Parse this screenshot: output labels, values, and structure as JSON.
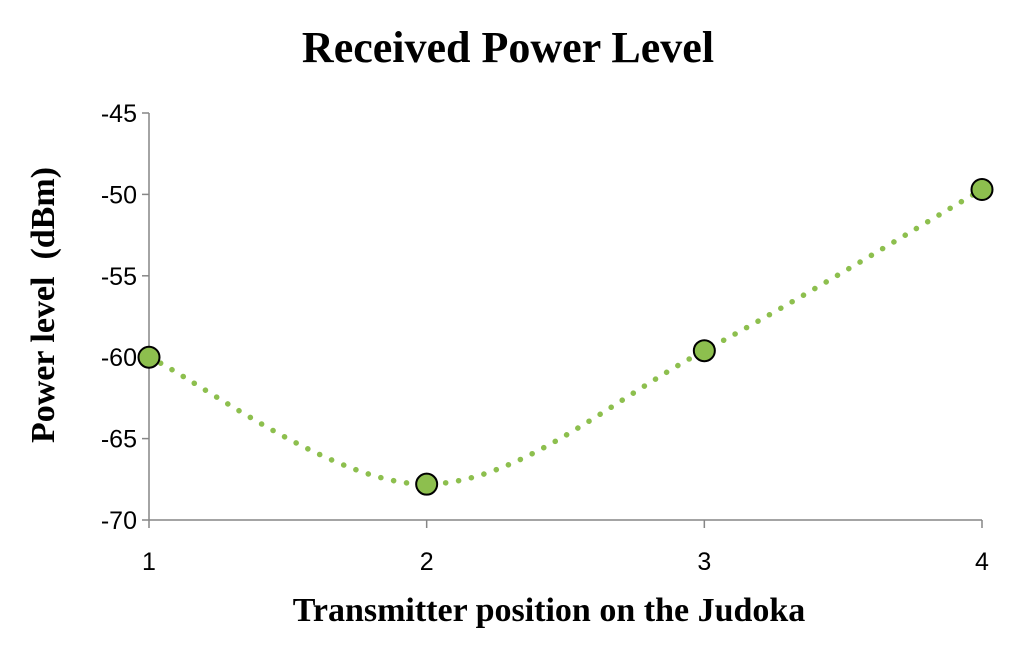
{
  "chart_data": {
    "type": "line",
    "title": "Received Power Level",
    "xlabel": "Transmitter position on the Judoka",
    "ylabel": "Power level  (dBm)",
    "x": [
      1,
      2,
      3,
      4
    ],
    "xticks": [
      1,
      2,
      3,
      4
    ],
    "xtick_labels": [
      "1",
      "2",
      "3",
      "4"
    ],
    "yticks": [
      -70,
      -65,
      -60,
      -55,
      -50,
      -45
    ],
    "ytick_labels": [
      "-70",
      "-65",
      "-60",
      "-55",
      "-50",
      "-45"
    ],
    "ylim": [
      -70,
      -45
    ],
    "xlim": [
      1,
      4
    ],
    "series": [
      {
        "values": [
          -60.0,
          -67.8,
          -59.6,
          -49.7
        ],
        "line_style": "dotted",
        "line_color": "#8DBF4E",
        "marker": "circle",
        "marker_fill": "#8DBF4E",
        "marker_edge": "#000000"
      }
    ],
    "grid": false,
    "legend": "none"
  }
}
